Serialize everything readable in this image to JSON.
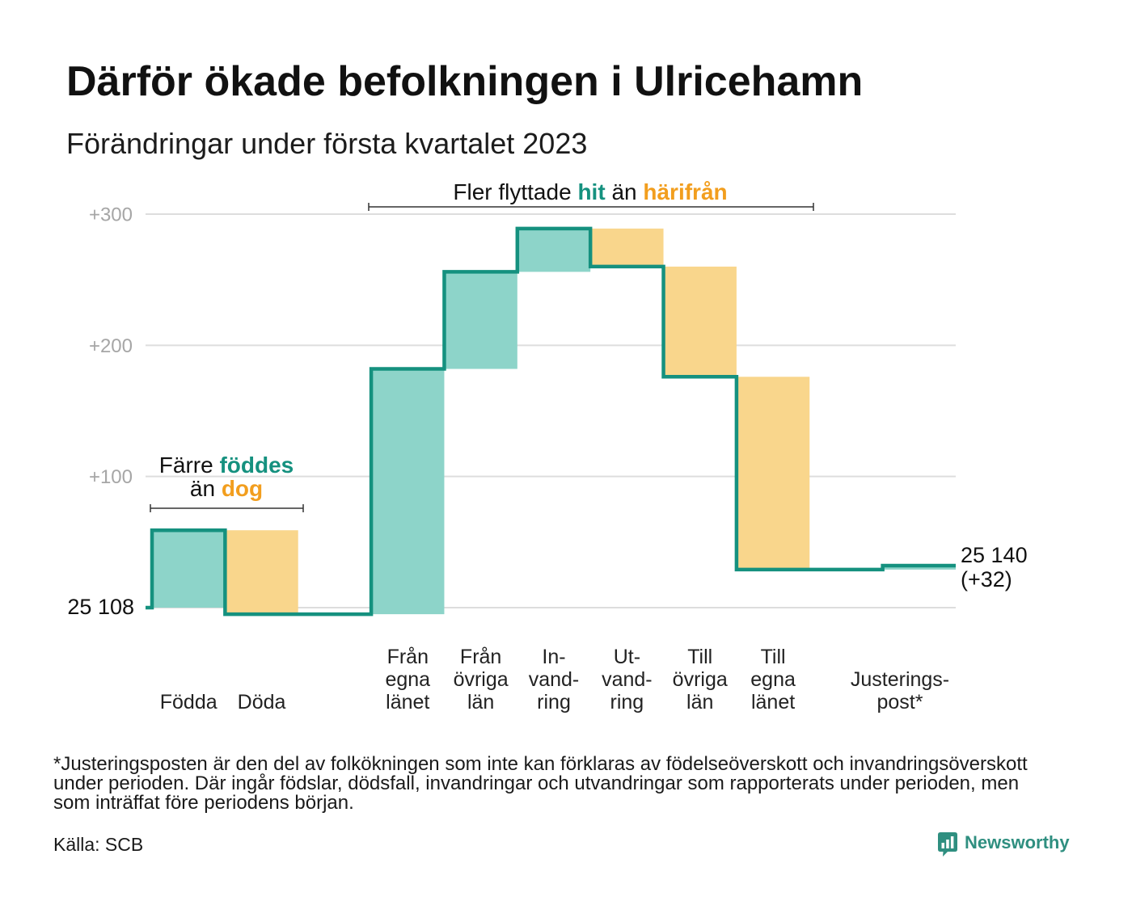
{
  "title": "Därför ökade befolkningen i Ulricehamn",
  "subtitle": "Förändringar under första kvartalet 2023",
  "colors": {
    "text": "#111111",
    "axis_text": "#a6a6a6",
    "grid": "#dddddd",
    "line": "#15917f",
    "increase_fill": "#8dd4c9",
    "decrease_fill": "#f9d68c",
    "highlight_teal": "#15917f",
    "highlight_orange": "#f29e1e",
    "logo": "#2f8f80"
  },
  "annotations": {
    "births": {
      "line1_text": "Färre",
      "line1_highlight": "föddes",
      "line2_text": "än",
      "line2_highlight": "dog"
    },
    "migration": {
      "text1": "Fler flyttade",
      "highlight1": "hit",
      "text2": "än",
      "highlight2": "härifrån"
    }
  },
  "chart_data": {
    "type": "bar",
    "waterfall": true,
    "start_value": 25108,
    "start_label": "25 108",
    "end_value": 25140,
    "end_label": "25 140",
    "end_change_label": "(+32)",
    "ylim": [
      0,
      300
    ],
    "yticks": [
      {
        "value": 100,
        "label": "+100"
      },
      {
        "value": 200,
        "label": "+200"
      },
      {
        "value": 300,
        "label": "+300"
      }
    ],
    "grid": true,
    "categories": [
      [
        "Födda"
      ],
      [
        "Döda"
      ],
      [
        "Från",
        "egna",
        "länet"
      ],
      [
        "Från",
        "övriga",
        "län"
      ],
      [
        "In-",
        "vand-",
        "ring"
      ],
      [
        "Ut-",
        "vand-",
        "ring"
      ],
      [
        "Till",
        "övriga",
        "län"
      ],
      [
        "Till",
        "egna",
        "länet"
      ],
      [
        "Justerings-",
        "post*"
      ]
    ],
    "values": [
      59,
      -64,
      187,
      74,
      33,
      -29,
      -84,
      -147,
      3
    ]
  },
  "footnote": [
    "*Justeringsposten är den del av folkökningen som inte kan förklaras av födelseöverskott och invandringsöverskott",
    "under perioden. Där ingår födslar, dödsfall, invandringar och utvandringar som rapporterats under perioden, men",
    "som inträffat före periodens början."
  ],
  "source": "Källa: SCB",
  "logo": {
    "text": "Newsworthy",
    "icon": "newsworthy-logo-icon"
  }
}
